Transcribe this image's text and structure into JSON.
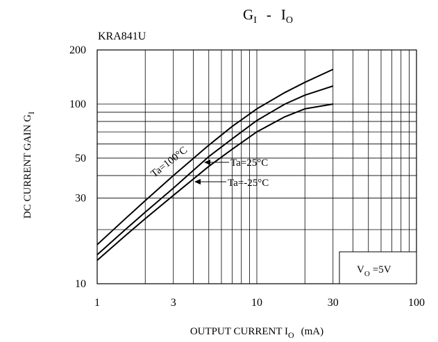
{
  "chart_data": {
    "type": "line",
    "title": "G",
    "title_sub": "I",
    "title_sep": "-",
    "title_right": "I",
    "title_right_sub": "O",
    "subtitle": "KRA841U",
    "xlabel": "OUTPUT CURRENT I",
    "xlabel_sub": "O",
    "xlabel_unit": "(mA)",
    "ylabel": "DC CURRENT GAIN G",
    "ylabel_sub": "I",
    "x_scale": "log",
    "y_scale": "log",
    "xlim": [
      1,
      100
    ],
    "ylim": [
      10,
      200
    ],
    "x_ticks": [
      1,
      3,
      10,
      30,
      100
    ],
    "x_tick_labels": [
      "1",
      "3",
      "10",
      "30",
      "100"
    ],
    "y_ticks": [
      10,
      30,
      50,
      100,
      200
    ],
    "y_tick_labels": [
      "10",
      "30",
      "50",
      "100",
      "200"
    ],
    "grid": true,
    "condition": {
      "main": "V",
      "sub": "O",
      "rest": "=5V"
    },
    "series": [
      {
        "name": "Ta=100°C",
        "x": [
          1,
          1.5,
          2,
          3,
          5,
          7,
          10,
          15,
          20,
          30
        ],
        "y": [
          16.5,
          23,
          29,
          40,
          59,
          75,
          94,
          116,
          132,
          156
        ]
      },
      {
        "name": "Ta=25°C",
        "x": [
          1,
          1.5,
          2,
          3,
          5,
          7,
          10,
          15,
          20,
          30
        ],
        "y": [
          14.5,
          20,
          25,
          34,
          51,
          64,
          81,
          100,
          112,
          126
        ]
      },
      {
        "name": "Ta=-25°C",
        "x": [
          1,
          1.5,
          2,
          3,
          5,
          7,
          10,
          15,
          20,
          30
        ],
        "y": [
          13.5,
          18.5,
          23,
          31,
          45,
          56,
          70,
          85,
          94,
          100
        ]
      }
    ]
  }
}
